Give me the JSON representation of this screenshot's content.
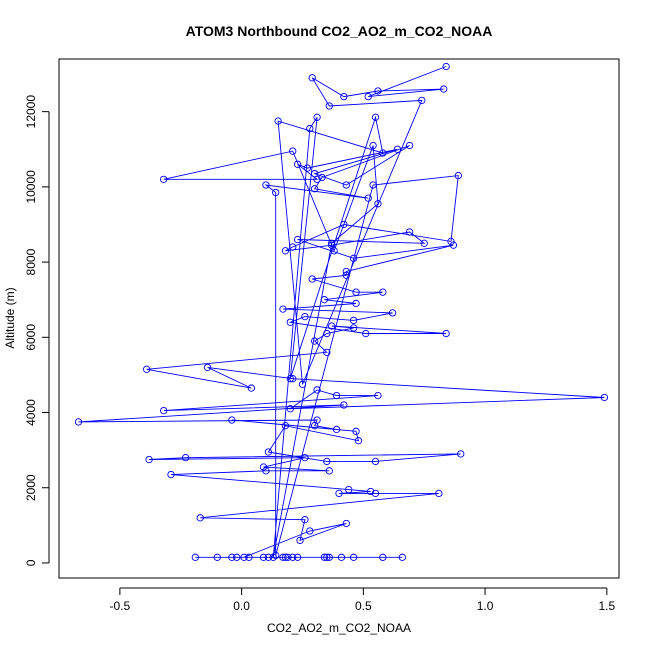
{
  "chart_data": {
    "type": "line",
    "title": "ATOM3 Northbound CO2_AO2_m_CO2_NOAA",
    "xlabel": "CO2_AO2_m_CO2_NOAA",
    "ylabel": "Altitude (m)",
    "xlim": [
      -0.75,
      1.55
    ],
    "ylim": [
      -400,
      13400
    ],
    "xticks": [
      -0.5,
      0.0,
      0.5,
      1.0,
      1.5
    ],
    "xtick_labels": [
      "-0.5",
      "0.0",
      "0.5",
      "1.0",
      "1.5"
    ],
    "yticks": [
      0,
      2000,
      4000,
      6000,
      8000,
      10000,
      12000
    ],
    "ytick_labels": [
      "0",
      "2000",
      "4000",
      "6000",
      "8000",
      "10000",
      "12000"
    ],
    "grid": false,
    "series_color": "#0000ff",
    "marker": "open-circle",
    "points": [
      [
        0.84,
        13200
      ],
      [
        0.52,
        12400
      ],
      [
        0.83,
        12600
      ],
      [
        0.56,
        12550
      ],
      [
        0.42,
        12400
      ],
      [
        0.29,
        12900
      ],
      [
        0.36,
        12150
      ],
      [
        0.74,
        12300
      ],
      [
        0.25,
        4750
      ],
      [
        0.15,
        11750
      ],
      [
        0.58,
        10900
      ],
      [
        0.55,
        11850
      ],
      [
        0.2,
        4900
      ],
      [
        0.31,
        11850
      ],
      [
        0.28,
        11550
      ],
      [
        0.13,
        150
      ],
      [
        0.37,
        8500
      ],
      [
        0.56,
        9550
      ],
      [
        0.54,
        11100
      ],
      [
        0.38,
        8300
      ],
      [
        0.21,
        10950
      ],
      [
        -0.32,
        10200
      ],
      [
        0.31,
        10200
      ],
      [
        0.23,
        10600
      ],
      [
        0.27,
        10500
      ],
      [
        0.64,
        11000
      ],
      [
        0.3,
        10350
      ],
      [
        0.43,
        10050
      ],
      [
        0.69,
        11100
      ],
      [
        0.33,
        10250
      ],
      [
        0.3,
        9950
      ],
      [
        0.52,
        9700
      ],
      [
        0.1,
        10050
      ],
      [
        0.14,
        9850
      ],
      [
        0.14,
        200
      ],
      [
        0.54,
        10050
      ],
      [
        0.89,
        10300
      ],
      [
        0.86,
        8550
      ],
      [
        0.42,
        9000
      ],
      [
        0.21,
        8400
      ],
      [
        0.18,
        8300
      ],
      [
        0.37,
        8450
      ],
      [
        0.69,
        8800
      ],
      [
        0.75,
        8500
      ],
      [
        0.23,
        8600
      ],
      [
        0.46,
        8100
      ],
      [
        0.87,
        8450
      ],
      [
        0.43,
        7750
      ],
      [
        0.43,
        7650
      ],
      [
        0.29,
        7550
      ],
      [
        0.47,
        7200
      ],
      [
        0.58,
        7200
      ],
      [
        0.34,
        7000
      ],
      [
        0.47,
        6900
      ],
      [
        0.17,
        6750
      ],
      [
        0.62,
        6650
      ],
      [
        0.46,
        6450
      ],
      [
        0.26,
        6550
      ],
      [
        0.2,
        6400
      ],
      [
        0.51,
        6100
      ],
      [
        0.84,
        6100
      ],
      [
        0.37,
        6300
      ],
      [
        0.46,
        6250
      ],
      [
        0.35,
        6100
      ],
      [
        0.3,
        5900
      ],
      [
        0.35,
        5600
      ],
      [
        -0.39,
        5150
      ],
      [
        0.04,
        4650
      ],
      [
        -0.14,
        5200
      ],
      [
        0.21,
        4900
      ],
      [
        1.49,
        4400
      ],
      [
        0.2,
        4100
      ],
      [
        0.31,
        4600
      ],
      [
        0.39,
        4450
      ],
      [
        0.56,
        4450
      ],
      [
        -0.32,
        4050
      ],
      [
        0.42,
        4200
      ],
      [
        -0.67,
        3750
      ],
      [
        0.31,
        3800
      ],
      [
        0.3,
        3650
      ],
      [
        0.39,
        3550
      ],
      [
        -0.04,
        3800
      ],
      [
        0.47,
        3500
      ],
      [
        0.48,
        3250
      ],
      [
        0.18,
        3650
      ],
      [
        0.11,
        2950
      ],
      [
        0.35,
        2700
      ],
      [
        0.55,
        2700
      ],
      [
        0.9,
        2900
      ],
      [
        -0.23,
        2800
      ],
      [
        -0.38,
        2750
      ],
      [
        0.26,
        2800
      ],
      [
        0.09,
        2550
      ],
      [
        0.36,
        2450
      ],
      [
        0.1,
        2450
      ],
      [
        -0.29,
        2350
      ],
      [
        0.44,
        1950
      ],
      [
        0.53,
        1900
      ],
      [
        0.4,
        1850
      ],
      [
        0.55,
        1850
      ],
      [
        0.81,
        1850
      ],
      [
        -0.17,
        1200
      ],
      [
        0.26,
        1150
      ],
      [
        0.24,
        600
      ],
      [
        0.43,
        1050
      ],
      [
        0.28,
        850
      ],
      [
        0.01,
        150
      ],
      [
        -0.19,
        150
      ],
      [
        -0.1,
        150
      ],
      [
        -0.04,
        150
      ],
      [
        -0.02,
        150
      ],
      [
        0.03,
        150
      ],
      [
        0.09,
        150
      ],
      [
        0.11,
        150
      ],
      [
        0.17,
        150
      ],
      [
        0.18,
        150
      ],
      [
        0.19,
        150
      ],
      [
        0.21,
        150
      ],
      [
        0.23,
        150
      ],
      [
        0.34,
        150
      ],
      [
        0.35,
        150
      ],
      [
        0.36,
        150
      ],
      [
        0.41,
        150
      ],
      [
        0.46,
        150
      ],
      [
        0.58,
        150
      ],
      [
        0.66,
        150
      ]
    ]
  }
}
